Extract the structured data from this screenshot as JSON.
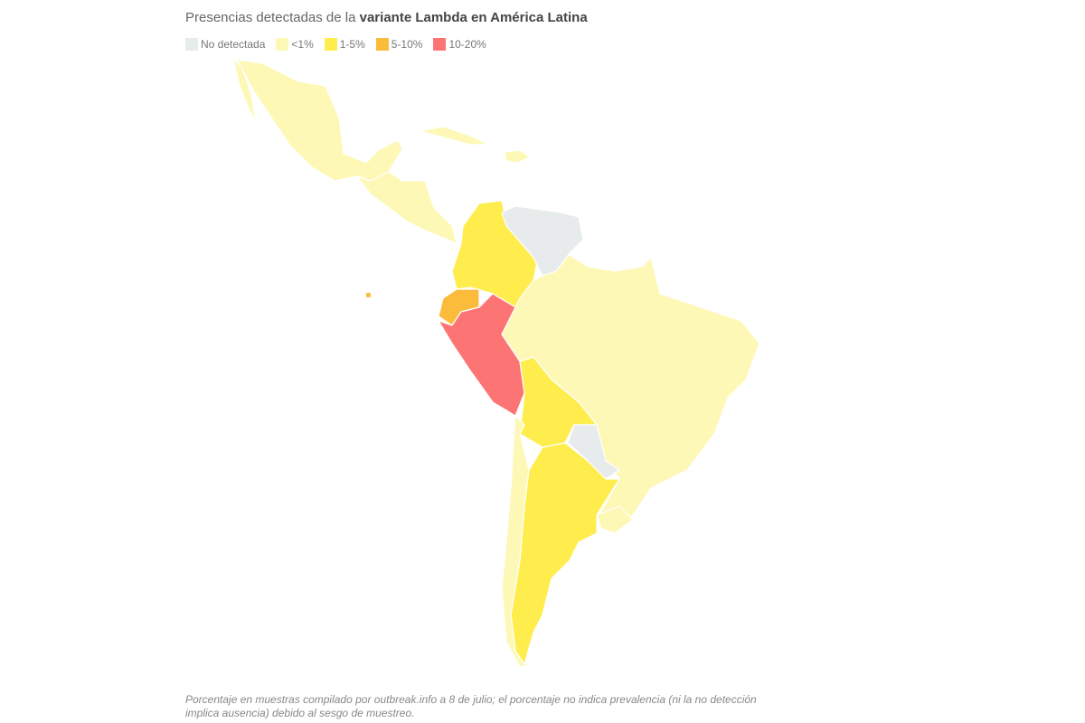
{
  "title": {
    "prefix": "Presencias detectadas de la ",
    "bold": "variante Lambda en América Latina"
  },
  "legend": [
    {
      "label": "No detectada",
      "color": "#e8ebeb"
    },
    {
      "label": "<1%",
      "color": "#fdf8b5"
    },
    {
      "label": "1-5%",
      "color": "#feed4c"
    },
    {
      "label": "5-10%",
      "color": "#fbbb3b"
    },
    {
      "label": "10-20%",
      "color": "#fd7474"
    }
  ],
  "countries": {
    "Mexico": "<1%",
    "Central America": "<1%",
    "Cuba": "<1%",
    "Hispaniola": "<1%",
    "Colombia": "1-5%",
    "Venezuela": "No detectada",
    "Ecuador": "5-10%",
    "Peru": "10-20%",
    "Brazil": "<1%",
    "Bolivia": "1-5%",
    "Paraguay": "No detectada",
    "Argentina": "1-5%",
    "Chile": "<1%",
    "Uruguay": "<1%"
  },
  "note": "Porcentaje en muestras compilado por outbreak.info a 8 de julio; el porcentaje no indica prevalencia (ni la no detección implica ausencia) debido al sesgo de muestreo."
}
